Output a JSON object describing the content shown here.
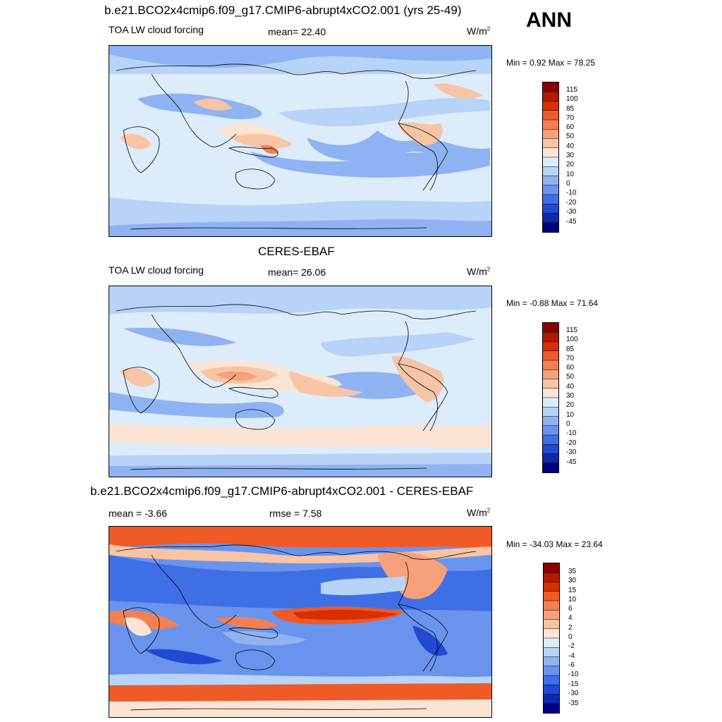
{
  "season": "ANN",
  "panels": [
    {
      "title": "b.e21.BCO2x4cmip6.f09_g17.CMIP6-abrupt4xCO2.001 (yrs 25-49)",
      "variable": "TOA LW cloud forcing",
      "stat_left": "",
      "stat_center": "mean=  22.40",
      "units": "W/m",
      "units_sup": "2",
      "minmax": "Min =   0.92 Max =  78.25",
      "colorbar_levels": [
        "115",
        "100",
        "85",
        "70",
        "60",
        "50",
        "40",
        "30",
        "20",
        "10",
        "0",
        "-10",
        "-20",
        "-30",
        "-45"
      ]
    },
    {
      "title": "CERES-EBAF",
      "variable": "TOA LW cloud forcing",
      "stat_left": "",
      "stat_center": "mean=  26.06",
      "units": "W/m",
      "units_sup": "2",
      "minmax": "Min =  -0.88 Max =  71.64",
      "colorbar_levels": [
        "115",
        "100",
        "85",
        "70",
        "60",
        "50",
        "40",
        "30",
        "20",
        "10",
        "0",
        "-10",
        "-20",
        "-30",
        "-45"
      ]
    },
    {
      "title": "b.e21.BCO2x4cmip6.f09_g17.CMIP6-abrupt4xCO2.001 - CERES-EBAF",
      "variable": "",
      "stat_left": "mean =  -3.66",
      "stat_center": "rmse =   7.58",
      "units": "W/m",
      "units_sup": "2",
      "minmax": "Min = -34.03 Max =  23.64",
      "colorbar_levels": [
        "35",
        "30",
        "15",
        "10",
        "6",
        "4",
        "2",
        "0",
        "-2",
        "-4",
        "-6",
        "-10",
        "-15",
        "-30",
        "-35"
      ]
    }
  ],
  "colors": {
    "palette": [
      "#8b0000",
      "#b31b00",
      "#d62f00",
      "#ef5a27",
      "#f47f53",
      "#f6a17c",
      "#f8c4a6",
      "#fbe4d3",
      "#dcecfb",
      "#b7d3f7",
      "#8fb3f2",
      "#6a93ee",
      "#3f6fe6",
      "#2249d1",
      "#0f28b0",
      "#000080"
    ]
  }
}
